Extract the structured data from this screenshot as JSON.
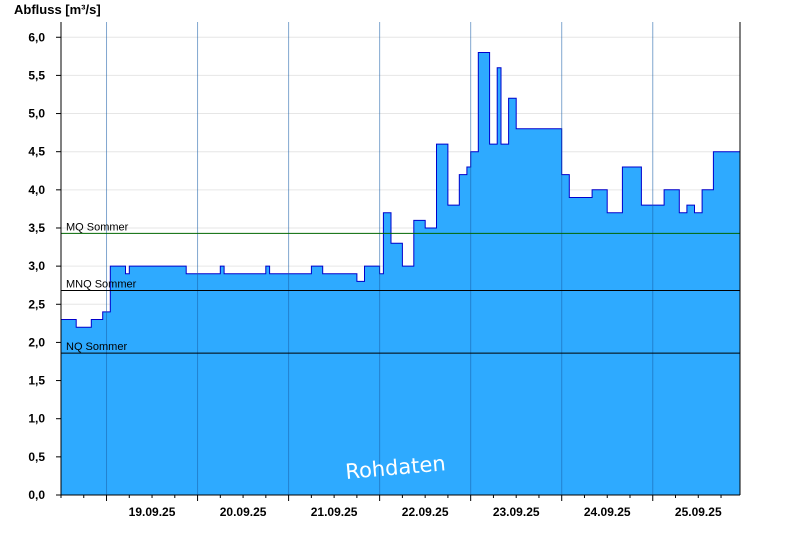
{
  "chart_data": {
    "type": "area",
    "title": "",
    "ylabel": "Abfluss [m³/s]",
    "xlabel": "",
    "ylim": [
      0,
      6.2
    ],
    "yticks": [
      0,
      0.5,
      1,
      1.5,
      2,
      2.5,
      3,
      3.5,
      4,
      4.5,
      5,
      5.5,
      6
    ],
    "ytick_labels": [
      "0,0",
      "0,5",
      "1,0",
      "1,5",
      "2,0",
      "2,5",
      "3,0",
      "3,5",
      "4,0",
      "4,5",
      "5,0",
      "5,5",
      "6,0"
    ],
    "xlim": [
      "18.09.25 12:00",
      "25.09.25 23:00"
    ],
    "xtick_labels": [
      "19.09.25",
      "20.09.25",
      "21.09.25",
      "22.09.25",
      "23.09.25",
      "24.09.25",
      "25.09.25"
    ],
    "grid": "horizontal",
    "fill_color": "#2eaaff",
    "line_color": "#0000cc",
    "series": [
      {
        "x": [
          "18.09.25 12:00",
          "18.09.25 16:00",
          "18.09.25 20:00",
          "18.09.25 22:00",
          "18.09.25 23:00",
          "19.09.25 01:00",
          "19.09.25 05:00",
          "19.09.25 06:00",
          "19.09.25 12:00",
          "19.09.25 20:00",
          "19.09.25 21:00",
          "20.09.25 06:00",
          "20.09.25 07:00",
          "20.09.25 18:00",
          "20.09.25 19:00",
          "21.09.25 06:00",
          "21.09.25 08:00",
          "21.09.25 09:00",
          "21.09.25 12:00",
          "21.09.25 18:00",
          "21.09.25 20:00",
          "21.09.25 22:00",
          "22.09.25 00:00",
          "22.09.25 01:00",
          "22.09.25 03:00",
          "22.09.25 06:00",
          "22.09.25 09:00",
          "22.09.25 12:00",
          "22.09.25 15:00",
          "22.09.25 18:00",
          "22.09.25 21:00",
          "22.09.25 23:00",
          "23.09.25 00:00",
          "23.09.25 02:00",
          "23.09.25 05:00",
          "23.09.25 07:00",
          "23.09.25 08:00",
          "23.09.25 10:00",
          "23.09.25 12:00",
          "23.09.25 14:00",
          "23.09.25 15:00",
          "23.09.25 19:00",
          "24.09.25 00:00",
          "24.09.25 02:00",
          "24.09.25 04:00",
          "24.09.25 08:00",
          "24.09.25 12:00",
          "24.09.25 16:00",
          "24.09.25 21:00",
          "24.09.25 23:00",
          "25.09.25 01:00",
          "25.09.25 03:00",
          "25.09.25 07:00",
          "25.09.25 09:00",
          "25.09.25 11:00",
          "25.09.25 13:00",
          "25.09.25 16:00",
          "25.09.25 19:00",
          "25.09.25 23:00"
        ],
        "values": [
          2.3,
          2.2,
          2.3,
          2.3,
          2.4,
          3.0,
          2.9,
          3.0,
          3.0,
          3.0,
          2.9,
          3.0,
          2.9,
          3.0,
          2.9,
          3.0,
          3.0,
          2.9,
          2.9,
          2.8,
          3.0,
          3.0,
          2.9,
          3.7,
          3.3,
          3.0,
          3.6,
          3.5,
          4.6,
          3.8,
          4.2,
          4.3,
          4.5,
          5.8,
          4.6,
          5.6,
          4.6,
          5.2,
          4.8,
          4.8,
          4.8,
          4.8,
          4.2,
          3.9,
          3.9,
          4.0,
          3.7,
          4.3,
          3.8,
          3.8,
          3.8,
          4.0,
          3.7,
          3.8,
          3.7,
          4.0,
          4.5,
          4.5,
          4.5
        ]
      }
    ],
    "reference_lines": [
      {
        "label": "MQ Sommer",
        "value": 3.43,
        "color": "#006600"
      },
      {
        "label": "MNQ Sommer",
        "value": 2.68,
        "color": "#000000"
      },
      {
        "label": "NQ Sommer",
        "value": 1.86,
        "color": "#000000"
      }
    ],
    "watermark": "Rohdaten"
  }
}
